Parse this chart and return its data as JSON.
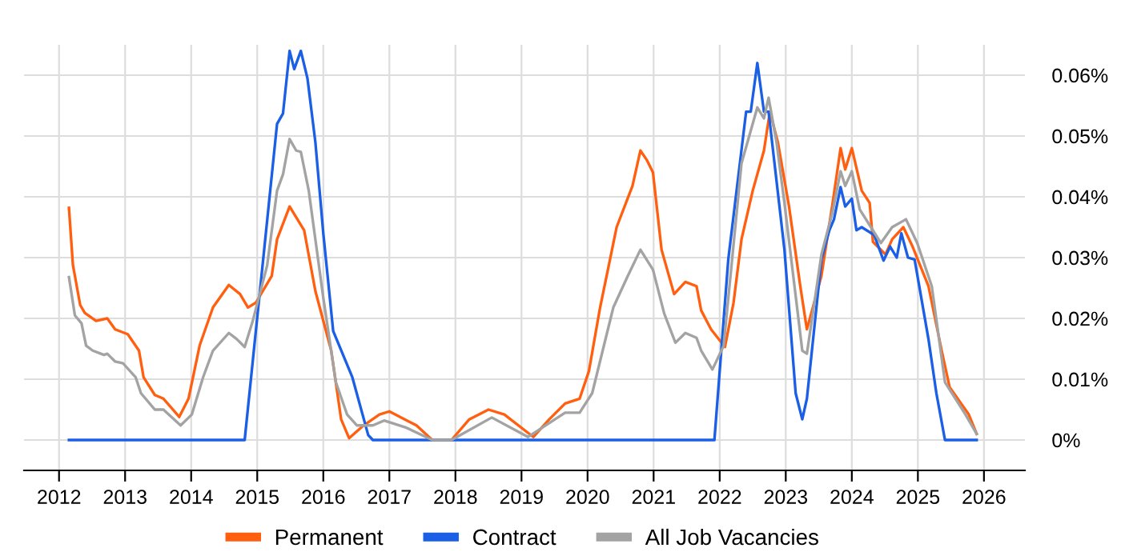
{
  "chart_data": {
    "type": "line",
    "series": [
      {
        "name": "Permanent",
        "color": "#ff5f0f",
        "x": [
          2012.15,
          2012.21,
          2012.24,
          2012.32,
          2012.39,
          2012.56,
          2012.73,
          2012.85,
          2013.04,
          2013.21,
          2013.28,
          2013.45,
          2013.58,
          2013.82,
          2013.96,
          2014.13,
          2014.33,
          2014.57,
          2014.74,
          2014.86,
          2014.98,
          2015.22,
          2015.3,
          2015.49,
          2015.71,
          2015.88,
          2016.12,
          2016.27,
          2016.39,
          2016.61,
          2016.85,
          2017.0,
          2017.41,
          2017.65,
          2017.94,
          2018.21,
          2018.5,
          2018.74,
          2019.18,
          2019.42,
          2019.66,
          2019.88,
          2020.02,
          2020.19,
          2020.44,
          2020.68,
          2020.8,
          2020.9,
          2020.99,
          2021.12,
          2021.31,
          2021.48,
          2021.65,
          2021.72,
          2021.87,
          2022.08,
          2022.21,
          2022.33,
          2022.5,
          2022.67,
          2022.76,
          2022.88,
          2023.05,
          2023.22,
          2023.32,
          2023.54,
          2023.71,
          2023.83,
          2023.9,
          2024.0,
          2024.15,
          2024.27,
          2024.32,
          2024.51,
          2024.61,
          2024.78,
          2024.92,
          2025.16,
          2025.36,
          2025.48,
          2025.77,
          2025.89
        ],
        "values": [
          0.0382,
          0.0288,
          0.027,
          0.0222,
          0.0209,
          0.0196,
          0.02,
          0.0182,
          0.0174,
          0.0147,
          0.0103,
          0.0074,
          0.0068,
          0.0038,
          0.0068,
          0.0156,
          0.0218,
          0.0255,
          0.024,
          0.0218,
          0.0226,
          0.027,
          0.033,
          0.0384,
          0.0345,
          0.0245,
          0.0147,
          0.0034,
          0.0003,
          0.0024,
          0.0042,
          0.0047,
          0.0024,
          0,
          0,
          0.0034,
          0.005,
          0.0042,
          0.0005,
          0.0034,
          0.006,
          0.0068,
          0.0113,
          0.0218,
          0.035,
          0.0418,
          0.0476,
          0.046,
          0.044,
          0.0313,
          0.024,
          0.026,
          0.0253,
          0.0213,
          0.0182,
          0.0153,
          0.0226,
          0.033,
          0.041,
          0.0476,
          0.054,
          0.049,
          0.0384,
          0.0253,
          0.0182,
          0.027,
          0.039,
          0.048,
          0.0445,
          0.048,
          0.041,
          0.039,
          0.0326,
          0.0305,
          0.033,
          0.035,
          0.0318,
          0.0253,
          0.0147,
          0.0087,
          0.0042,
          0.001
        ]
      },
      {
        "name": "Contract",
        "color": "#1a5fe6",
        "x": [
          2012.15,
          2014.81,
          2015.3,
          2015.39,
          2015.49,
          2015.56,
          2015.66,
          2015.76,
          2015.88,
          2016.0,
          2016.15,
          2016.44,
          2016.68,
          2016.75,
          2021.92,
          2022.13,
          2022.4,
          2022.47,
          2022.57,
          2022.67,
          2022.74,
          2022.98,
          2023.15,
          2023.25,
          2023.32,
          2023.54,
          2023.66,
          2023.73,
          2023.83,
          2023.9,
          2024.0,
          2024.07,
          2024.15,
          2024.34,
          2024.48,
          2024.58,
          2024.68,
          2024.75,
          2024.85,
          2024.95,
          2025.16,
          2025.28,
          2025.41,
          2025.89
        ],
        "values": [
          0,
          0,
          0.052,
          0.0537,
          0.064,
          0.061,
          0.064,
          0.0595,
          0.049,
          0.034,
          0.0179,
          0.0103,
          0.0008,
          0,
          0,
          0.0297,
          0.054,
          0.054,
          0.062,
          0.054,
          0.054,
          0.0313,
          0.0077,
          0.0034,
          0.0068,
          0.0297,
          0.0345,
          0.0363,
          0.0416,
          0.0384,
          0.0397,
          0.0345,
          0.035,
          0.0337,
          0.0295,
          0.0318,
          0.03,
          0.034,
          0.03,
          0.0297,
          0.0166,
          0.0077,
          0,
          0
        ]
      },
      {
        "name": "All Job Vacancies",
        "color": "#a3a3a3",
        "x": [
          2012.15,
          2012.24,
          2012.34,
          2012.41,
          2012.51,
          2012.68,
          2012.73,
          2012.85,
          2012.97,
          2013.16,
          2013.24,
          2013.45,
          2013.58,
          2013.84,
          2014.01,
          2014.18,
          2014.33,
          2014.57,
          2014.69,
          2014.81,
          2014.93,
          2015.15,
          2015.3,
          2015.39,
          2015.49,
          2015.59,
          2015.66,
          2015.78,
          2016.0,
          2016.19,
          2016.36,
          2016.51,
          2016.75,
          2016.92,
          2017.24,
          2017.65,
          2017.94,
          2018.55,
          2019.1,
          2019.66,
          2019.88,
          2020.07,
          2020.39,
          2020.61,
          2020.8,
          2020.99,
          2021.16,
          2021.33,
          2021.48,
          2021.65,
          2021.72,
          2021.89,
          2022.06,
          2022.33,
          2022.57,
          2022.67,
          2022.74,
          2022.86,
          2022.98,
          2023.25,
          2023.32,
          2023.54,
          2023.71,
          2023.83,
          2023.9,
          2024.0,
          2024.12,
          2024.29,
          2024.44,
          2024.61,
          2024.82,
          2024.99,
          2025.21,
          2025.41,
          2025.72,
          2025.89
        ],
        "values": [
          0.0268,
          0.0205,
          0.0192,
          0.0155,
          0.0147,
          0.014,
          0.0142,
          0.0129,
          0.0126,
          0.0103,
          0.0077,
          0.005,
          0.005,
          0.0024,
          0.0042,
          0.0103,
          0.0147,
          0.0176,
          0.0166,
          0.0153,
          0.0195,
          0.0287,
          0.041,
          0.0437,
          0.0495,
          0.0476,
          0.0474,
          0.041,
          0.0234,
          0.0095,
          0.0042,
          0.0024,
          0.0024,
          0.0032,
          0.0021,
          0,
          0,
          0.0037,
          0.0005,
          0.0045,
          0.0045,
          0.0077,
          0.0218,
          0.027,
          0.0313,
          0.028,
          0.0208,
          0.016,
          0.0176,
          0.0168,
          0.0147,
          0.0116,
          0.0155,
          0.0455,
          0.0547,
          0.0529,
          0.0563,
          0.049,
          0.039,
          0.0147,
          0.0142,
          0.0305,
          0.0376,
          0.0442,
          0.0418,
          0.0442,
          0.0379,
          0.035,
          0.0324,
          0.035,
          0.0363,
          0.0324,
          0.0253,
          0.0095,
          0.0042,
          0.001
        ]
      }
    ],
    "xlim": [
      2011.47,
      2026.62
    ],
    "xticks": [
      2012,
      2013,
      2014,
      2015,
      2016,
      2017,
      2018,
      2019,
      2020,
      2021,
      2022,
      2023,
      2024,
      2025,
      2026
    ],
    "ylim": [
      -0.005,
      0.065
    ],
    "yticks": [
      {
        "value": 0,
        "label": "0%"
      },
      {
        "value": 0.01,
        "label": "0.01%"
      },
      {
        "value": 0.02,
        "label": "0.02%"
      },
      {
        "value": 0.03,
        "label": "0.03%"
      },
      {
        "value": 0.04,
        "label": "0.04%"
      },
      {
        "value": 0.05,
        "label": "0.05%"
      },
      {
        "value": 0.06,
        "label": "0.06%"
      }
    ],
    "grid": true,
    "legend": "bottom",
    "marker": "none",
    "line_style": "solid"
  }
}
